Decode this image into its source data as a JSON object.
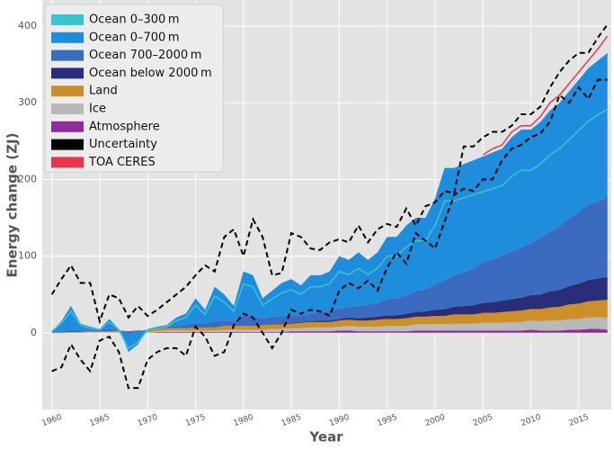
{
  "chart_data": {
    "type": "stacked-area",
    "x_label": "Year",
    "y_label": "Energy change (ZJ)",
    "x": [
      1960,
      1961,
      1962,
      1963,
      1964,
      1965,
      1966,
      1967,
      1968,
      1969,
      1970,
      1971,
      1972,
      1973,
      1974,
      1975,
      1976,
      1977,
      1978,
      1979,
      1980,
      1981,
      1982,
      1983,
      1984,
      1985,
      1986,
      1987,
      1988,
      1989,
      1990,
      1991,
      1992,
      1993,
      1994,
      1995,
      1996,
      1997,
      1998,
      1999,
      2000,
      2001,
      2002,
      2003,
      2004,
      2005,
      2006,
      2007,
      2008,
      2009,
      2010,
      2011,
      2012,
      2013,
      2014,
      2015,
      2016,
      2017,
      2018
    ],
    "xlim": [
      1959,
      2018.4
    ],
    "xticks": [
      1960,
      1965,
      1970,
      1975,
      1980,
      1985,
      1990,
      1995,
      2000,
      2005,
      2010,
      2015
    ],
    "ylim": [
      -100,
      434
    ],
    "yticks": [
      0,
      100,
      200,
      300,
      400
    ],
    "grid": true,
    "legend": "upper-left",
    "series": [
      {
        "name": "Ocean 0–300 m",
        "color": "#3cc3d2",
        "kind": "line",
        "values": [
          2,
          12,
          28,
          10,
          6,
          4,
          14,
          4,
          -20,
          -12,
          4,
          6,
          8,
          16,
          20,
          36,
          24,
          48,
          40,
          28,
          64,
          60,
          36,
          44,
          52,
          56,
          50,
          60,
          60,
          64,
          80,
          76,
          84,
          76,
          84,
          100,
          100,
          112,
          120,
          120,
          140,
          172,
          172,
          176,
          180,
          184,
          188,
          192,
          204,
          212,
          212,
          220,
          232,
          240,
          252,
          264,
          276,
          284,
          292
        ]
      },
      {
        "name": "Ocean 0–700 m",
        "color": "#1f8ddc",
        "kind": "area",
        "values": [
          1,
          13,
          31,
          9,
          5,
          1,
          13,
          1,
          -24,
          -17,
          1,
          2,
          2,
          11,
          15,
          32,
          18,
          45,
          34,
          20,
          57,
          54,
          27,
          34,
          43,
          47,
          39,
          50,
          48,
          52,
          68,
          61,
          70,
          58,
          66,
          81,
          80,
          91,
          96,
          93,
          112,
          147,
          140,
          141,
          141,
          138,
          139,
          139,
          149,
          154,
          148,
          152,
          158,
          161,
          166,
          172,
          178,
          184,
          188
        ]
      },
      {
        "name": "Ocean 700–2000 m",
        "color": "#3a6bbf",
        "kind": "area",
        "values": [
          1,
          2,
          3,
          2,
          1,
          2,
          3,
          1,
          -3,
          -1,
          1,
          1,
          2,
          3,
          4,
          6,
          5,
          8,
          7,
          6,
          14,
          12,
          8,
          9,
          10,
          10,
          9,
          10,
          11,
          12,
          14,
          14,
          16,
          17,
          18,
          21,
          22,
          24,
          27,
          29,
          33,
          37,
          41,
          44,
          48,
          53,
          56,
          59,
          62,
          65,
          68,
          73,
          78,
          83,
          88,
          94,
          98,
          100,
          104
        ]
      },
      {
        "name": "Ocean below 2000 m",
        "color": "#2a2e78",
        "kind": "area",
        "values": [
          0,
          0,
          0,
          0,
          0,
          0,
          0,
          0,
          0,
          0,
          0,
          0,
          0,
          0,
          0,
          0,
          0,
          0,
          0,
          0,
          0,
          0,
          0,
          1,
          1,
          1,
          1,
          1,
          2,
          2,
          2,
          3,
          3,
          4,
          4,
          5,
          5,
          6,
          6,
          7,
          8,
          9,
          10,
          11,
          12,
          13,
          14,
          15,
          16,
          17,
          18,
          19,
          21,
          22,
          24,
          26,
          28,
          29,
          30
        ]
      },
      {
        "name": "Land",
        "color": "#cc8f2a",
        "kind": "area",
        "values": [
          0,
          0,
          1,
          1,
          1,
          1,
          1,
          2,
          2,
          2,
          2,
          3,
          3,
          3,
          3,
          4,
          4,
          4,
          5,
          5,
          5,
          5,
          6,
          6,
          6,
          6,
          7,
          7,
          7,
          7,
          8,
          8,
          8,
          8,
          9,
          9,
          9,
          10,
          10,
          10,
          11,
          11,
          12,
          12,
          12,
          13,
          13,
          14,
          14,
          15,
          15,
          16,
          17,
          18,
          19,
          20,
          21,
          22,
          23
        ]
      },
      {
        "name": "Ice",
        "color": "#b9b9b9",
        "kind": "area",
        "values": [
          0,
          0,
          0,
          0,
          1,
          1,
          1,
          1,
          1,
          1,
          1,
          1,
          2,
          2,
          2,
          2,
          2,
          2,
          3,
          3,
          3,
          3,
          3,
          4,
          4,
          4,
          4,
          5,
          5,
          5,
          5,
          6,
          6,
          6,
          6,
          7,
          7,
          7,
          8,
          8,
          8,
          8,
          9,
          9,
          9,
          10,
          10,
          10,
          11,
          11,
          12,
          12,
          13,
          13,
          14,
          14,
          15,
          15,
          16
        ]
      },
      {
        "name": "Atmosphere",
        "color": "#8e2c9a",
        "kind": "area",
        "values": [
          0,
          0,
          0,
          0,
          0,
          0,
          0,
          0,
          -1,
          0,
          0,
          1,
          1,
          1,
          1,
          1,
          1,
          1,
          1,
          1,
          1,
          1,
          1,
          1,
          1,
          2,
          2,
          2,
          2,
          2,
          3,
          3,
          2,
          2,
          2,
          2,
          2,
          2,
          3,
          3,
          3,
          3,
          3,
          3,
          3,
          3,
          3,
          3,
          3,
          3,
          4,
          3,
          3,
          3,
          4,
          4,
          5,
          5,
          4
        ]
      },
      {
        "name": "Uncertainty",
        "color": "#000000",
        "kind": "band",
        "values": [
          50,
          70,
          88,
          65,
          65,
          15,
          50,
          45,
          20,
          35,
          22,
          30,
          40,
          50,
          60,
          75,
          88,
          80,
          125,
          135,
          100,
          148,
          125,
          75,
          78,
          130,
          125,
          110,
          108,
          118,
          122,
          118,
          140,
          118,
          135,
          142,
          138,
          162,
          140,
          165,
          170,
          185,
          182,
          243,
          243,
          255,
          262,
          262,
          270,
          285,
          285,
          295,
          320,
          340,
          355,
          365,
          365,
          385,
          402
        ],
        "lower": [
          -50,
          -45,
          -15,
          -35,
          -50,
          -10,
          -5,
          -25,
          -72,
          -72,
          -35,
          -25,
          -20,
          -20,
          -30,
          8,
          -5,
          -30,
          -25,
          10,
          25,
          20,
          0,
          -20,
          0,
          30,
          25,
          30,
          28,
          22,
          55,
          65,
          58,
          68,
          55,
          85,
          105,
          90,
          130,
          120,
          110,
          145,
          180,
          188,
          185,
          200,
          200,
          225,
          240,
          245,
          255,
          260,
          275,
          310,
          300,
          320,
          305,
          330,
          330
        ]
      },
      {
        "name": "TOA CERES",
        "color": "#e8344d",
        "kind": "line",
        "x": [
          2005,
          2006,
          2007,
          2008,
          2009,
          2010,
          2011,
          2012,
          2013,
          2014,
          2015,
          2016,
          2017,
          2018
        ],
        "values": [
          232,
          240,
          245,
          262,
          270,
          270,
          282,
          300,
          310,
          325,
          340,
          355,
          370,
          387
        ]
      }
    ]
  }
}
